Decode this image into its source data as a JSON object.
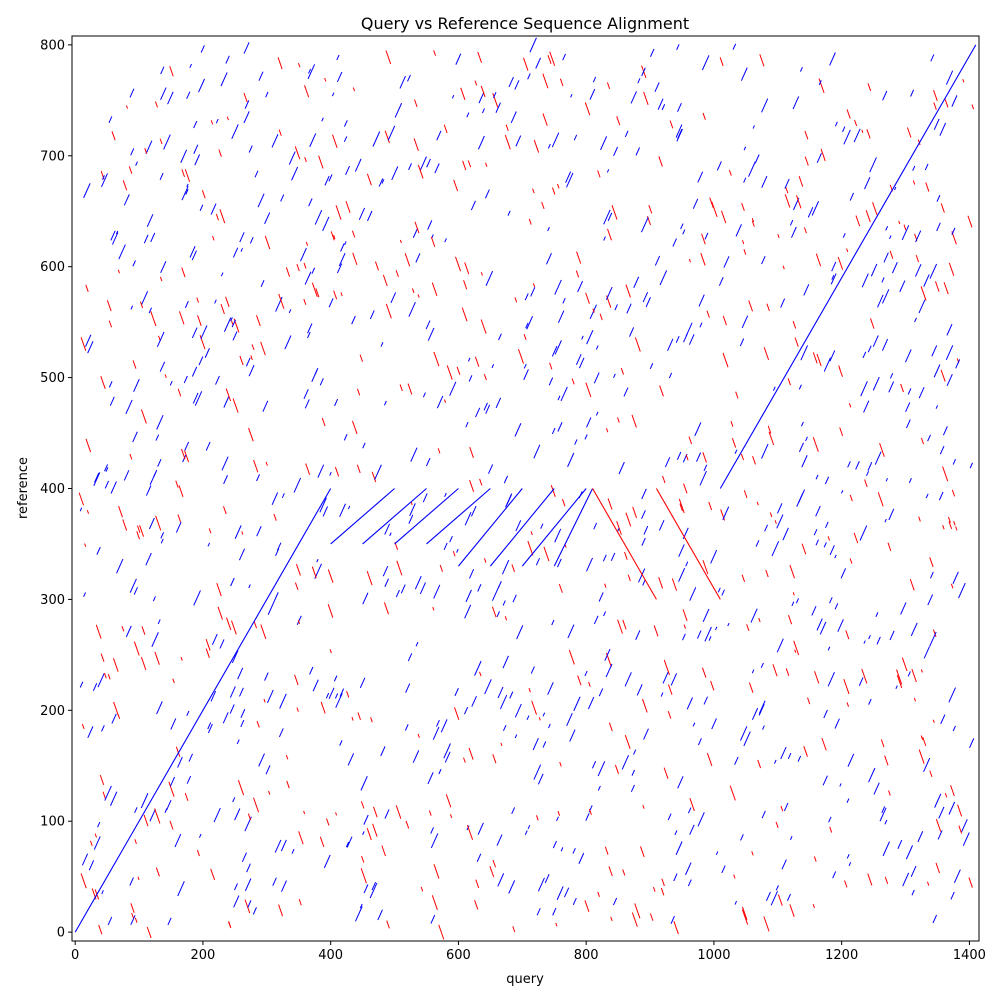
{
  "chart_data": {
    "type": "line",
    "title": "Query vs Reference Sequence Alignment",
    "xlabel": "query",
    "ylabel": "reference",
    "xlim": [
      -5,
      1415
    ],
    "ylim": [
      -8,
      808
    ],
    "xticks": [
      0,
      200,
      400,
      600,
      800,
      1000,
      1200,
      1400
    ],
    "yticks": [
      0,
      100,
      200,
      300,
      400,
      500,
      600,
      700,
      800
    ],
    "grid": false,
    "legend": "none",
    "colors": {
      "forward": "#0000ff",
      "reverse": "#ff0000"
    },
    "series": [
      {
        "strand": "forward",
        "segments": [
          {
            "x": [
              0,
              400
            ],
            "y": [
              0,
              400
            ]
          },
          {
            "x": [
              400,
              500
            ],
            "y": [
              350,
              400
            ]
          },
          {
            "x": [
              450,
              550
            ],
            "y": [
              350,
              400
            ]
          },
          {
            "x": [
              500,
              600
            ],
            "y": [
              350,
              400
            ]
          },
          {
            "x": [
              550,
              650
            ],
            "y": [
              350,
              400
            ]
          },
          {
            "x": [
              600,
              700
            ],
            "y": [
              330,
              400
            ]
          },
          {
            "x": [
              650,
              750
            ],
            "y": [
              330,
              400
            ]
          },
          {
            "x": [
              700,
              800
            ],
            "y": [
              330,
              400
            ]
          },
          {
            "x": [
              750,
              810
            ],
            "y": [
              330,
              400
            ]
          },
          {
            "x": [
              1010,
              1410
            ],
            "y": [
              400,
              800
            ]
          }
        ]
      },
      {
        "strand": "reverse",
        "segments": [
          {
            "x": [
              810,
              910
            ],
            "y": [
              400,
              300
            ]
          },
          {
            "x": [
              910,
              1010
            ],
            "y": [
              400,
              300
            ]
          }
        ]
      }
    ]
  },
  "plot": {
    "title_label": "Query vs Reference Sequence Alignment",
    "x_axis_label": "query",
    "y_axis_label": "reference"
  }
}
